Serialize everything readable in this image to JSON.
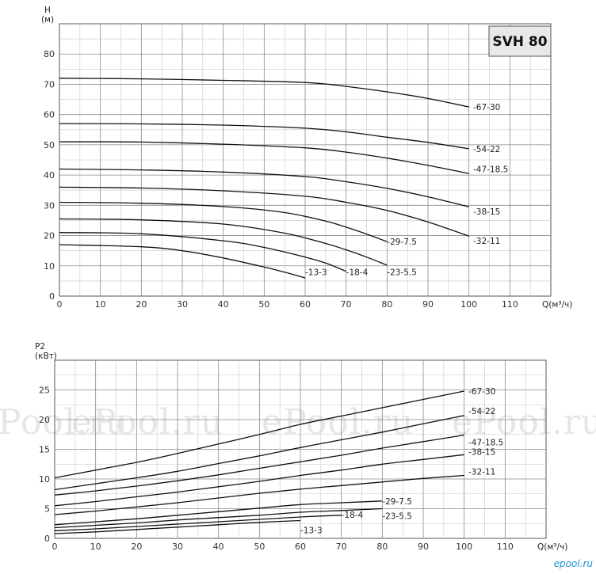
{
  "watermark": "ePool.ru",
  "corner_logo": "epool.ru",
  "chart_data": [
    {
      "type": "line",
      "title": "SVH 80",
      "ylabel": "H\n(м)",
      "xlabel": "Q(м³/ч)",
      "xlim": [
        0,
        120
      ],
      "ylim": [
        0,
        90
      ],
      "x_ticks": [
        0,
        10,
        20,
        30,
        40,
        50,
        60,
        70,
        80,
        90,
        100,
        110
      ],
      "y_ticks": [
        0,
        10,
        20,
        30,
        40,
        50,
        60,
        70,
        80
      ],
      "grid": true,
      "series": [
        {
          "name": "67-30",
          "x": [
            0,
            20,
            40,
            60,
            70,
            80,
            90,
            100
          ],
          "y": [
            72,
            71.8,
            71.3,
            70.6,
            69.3,
            67.5,
            65.3,
            62.5
          ]
        },
        {
          "name": "54-22",
          "x": [
            0,
            20,
            40,
            60,
            70,
            80,
            90,
            100
          ],
          "y": [
            57,
            56.9,
            56.5,
            55.5,
            54.3,
            52.5,
            50.8,
            48.7
          ]
        },
        {
          "name": "47-18.5",
          "x": [
            0,
            20,
            40,
            60,
            70,
            80,
            90,
            100
          ],
          "y": [
            51,
            50.9,
            50.2,
            49,
            47.6,
            45.6,
            43.2,
            40.5
          ]
        },
        {
          "name": "38-15",
          "x": [
            0,
            20,
            40,
            60,
            70,
            80,
            90,
            100
          ],
          "y": [
            42,
            41.7,
            41,
            39.5,
            37.8,
            35.6,
            32.8,
            29.5
          ]
        },
        {
          "name": "32-11",
          "x": [
            0,
            20,
            40,
            60,
            70,
            80,
            90,
            100
          ],
          "y": [
            36,
            35.7,
            34.8,
            33,
            31,
            28.3,
            24.5,
            19.8
          ]
        },
        {
          "name": "29-7.5",
          "x": [
            0,
            20,
            40,
            55,
            65,
            70,
            75,
            80
          ],
          "y": [
            31,
            30.7,
            29.6,
            27.6,
            24.8,
            22.8,
            20.5,
            18
          ]
        },
        {
          "name": "23-5.5",
          "x": [
            0,
            20,
            40,
            55,
            65,
            70,
            75,
            80
          ],
          "y": [
            25.5,
            25.2,
            23.8,
            20.8,
            17.4,
            15.3,
            12.9,
            10.2
          ]
        },
        {
          "name": "18-4",
          "x": [
            0,
            20,
            40,
            50,
            60,
            65,
            70
          ],
          "y": [
            21,
            20.6,
            18.3,
            16.1,
            12.9,
            10.9,
            8.2
          ]
        },
        {
          "name": "13-3",
          "x": [
            0,
            20,
            30,
            40,
            50,
            55,
            60
          ],
          "y": [
            17,
            16.3,
            15,
            12.6,
            9.6,
            7.9,
            6
          ]
        }
      ]
    },
    {
      "type": "line",
      "ylabel": "P2\n(кВт)",
      "xlabel": "Q(м³/ч)",
      "xlim": [
        0,
        120
      ],
      "ylim": [
        0,
        30
      ],
      "x_ticks": [
        0,
        10,
        20,
        30,
        40,
        50,
        60,
        70,
        80,
        90,
        100,
        110
      ],
      "y_ticks": [
        0,
        5,
        10,
        15,
        20,
        25
      ],
      "grid": true,
      "series": [
        {
          "name": "67-30",
          "x": [
            0,
            10,
            20,
            30,
            40,
            50,
            60,
            70,
            80,
            90,
            100
          ],
          "y": [
            10.2,
            11.5,
            12.8,
            14.3,
            15.9,
            17.5,
            19.2,
            20.6,
            22,
            23.4,
            24.8
          ]
        },
        {
          "name": "54-22",
          "x": [
            0,
            10,
            20,
            30,
            40,
            50,
            60,
            70,
            80,
            90,
            100
          ],
          "y": [
            8.2,
            9.2,
            10.2,
            11.3,
            12.6,
            13.9,
            15.3,
            16.6,
            17.9,
            19.3,
            20.7
          ]
        },
        {
          "name": "47-18.5",
          "x": [
            0,
            10,
            20,
            30,
            40,
            50,
            60,
            70,
            80,
            90,
            100
          ],
          "y": [
            7.3,
            8,
            8.8,
            9.7,
            10.7,
            11.8,
            12.9,
            14,
            15.2,
            16.3,
            17.4
          ]
        },
        {
          "name": "38-15",
          "x": [
            0,
            10,
            20,
            30,
            40,
            50,
            60,
            70,
            80,
            90,
            100
          ],
          "y": [
            5.5,
            6.2,
            7,
            7.8,
            8.7,
            9.6,
            10.6,
            11.5,
            12.5,
            13.3,
            14.1
          ]
        },
        {
          "name": "32-11",
          "x": [
            0,
            10,
            20,
            30,
            40,
            50,
            60,
            70,
            80,
            90,
            100
          ],
          "y": [
            4,
            4.6,
            5.3,
            6,
            6.8,
            7.6,
            8.3,
            8.9,
            9.5,
            10.1,
            10.6
          ]
        },
        {
          "name": "29-7.5",
          "x": [
            0,
            10,
            20,
            30,
            40,
            50,
            60,
            70,
            80
          ],
          "y": [
            2.3,
            2.8,
            3.3,
            3.9,
            4.5,
            5.1,
            5.7,
            6,
            6.3
          ]
        },
        {
          "name": "23-5.5",
          "x": [
            0,
            10,
            20,
            30,
            40,
            50,
            60,
            70,
            80
          ],
          "y": [
            1.8,
            2.2,
            2.6,
            3.1,
            3.5,
            3.9,
            4.4,
            4.7,
            5
          ]
        },
        {
          "name": "18-4",
          "x": [
            0,
            10,
            20,
            30,
            40,
            50,
            60,
            70
          ],
          "y": [
            1.3,
            1.6,
            2,
            2.4,
            2.8,
            3.2,
            3.6,
            3.9
          ]
        },
        {
          "name": "13-3",
          "x": [
            0,
            10,
            20,
            30,
            40,
            50,
            60
          ],
          "y": [
            0.8,
            1.1,
            1.5,
            1.9,
            2.3,
            2.7,
            3
          ]
        }
      ]
    }
  ]
}
